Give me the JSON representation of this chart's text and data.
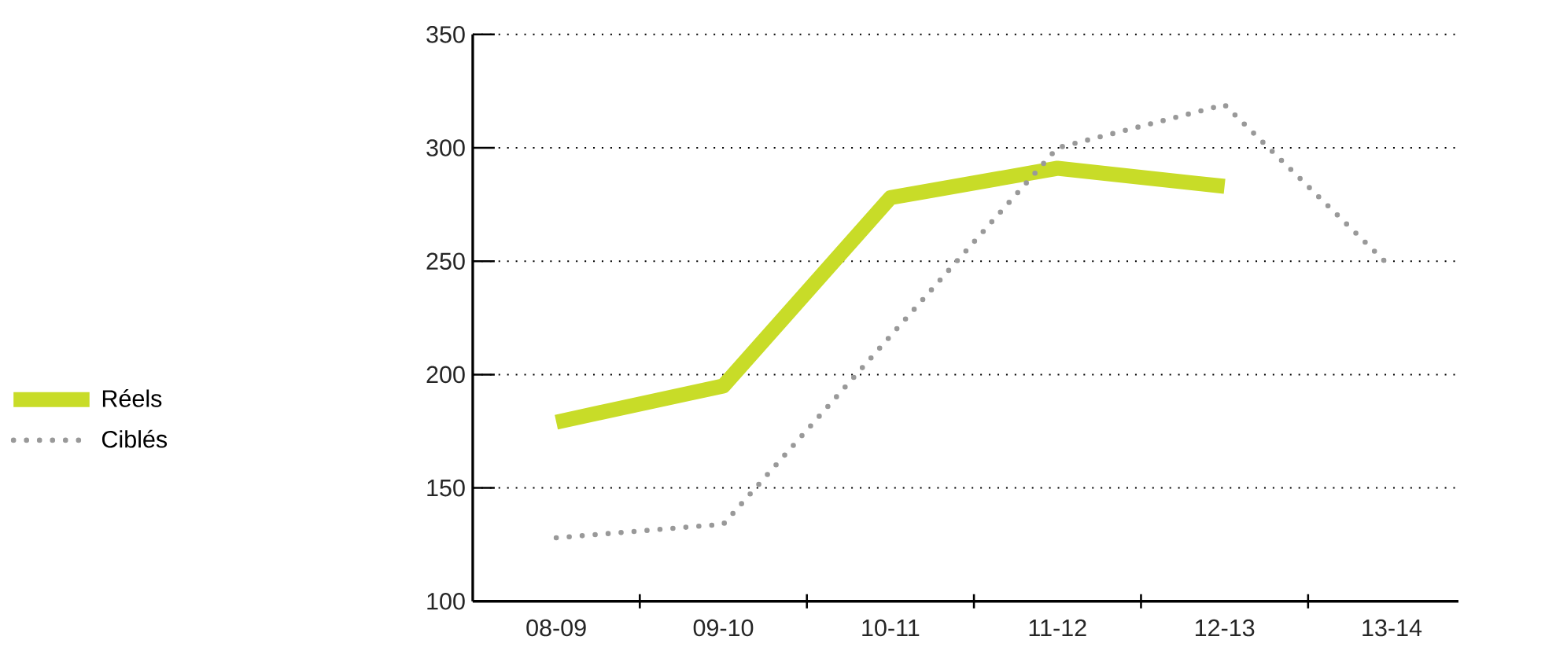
{
  "chart_data": {
    "type": "line",
    "categories": [
      "08-09",
      "09-10",
      "10-11",
      "11-12",
      "12-13",
      "13-14"
    ],
    "series": [
      {
        "name": "Réels",
        "color": "#c8dc28",
        "line_style": "solid",
        "values": [
          179,
          195,
          278,
          291,
          283,
          null
        ]
      },
      {
        "name": "Ciblés",
        "color": "#999999",
        "line_style": "dotted",
        "values": [
          128,
          134,
          217,
          300,
          319,
          247
        ]
      }
    ],
    "ylim": [
      100,
      350
    ],
    "yticks": [
      100,
      150,
      200,
      250,
      300,
      350
    ],
    "grid": "y",
    "legend": "left",
    "marker": "none"
  }
}
